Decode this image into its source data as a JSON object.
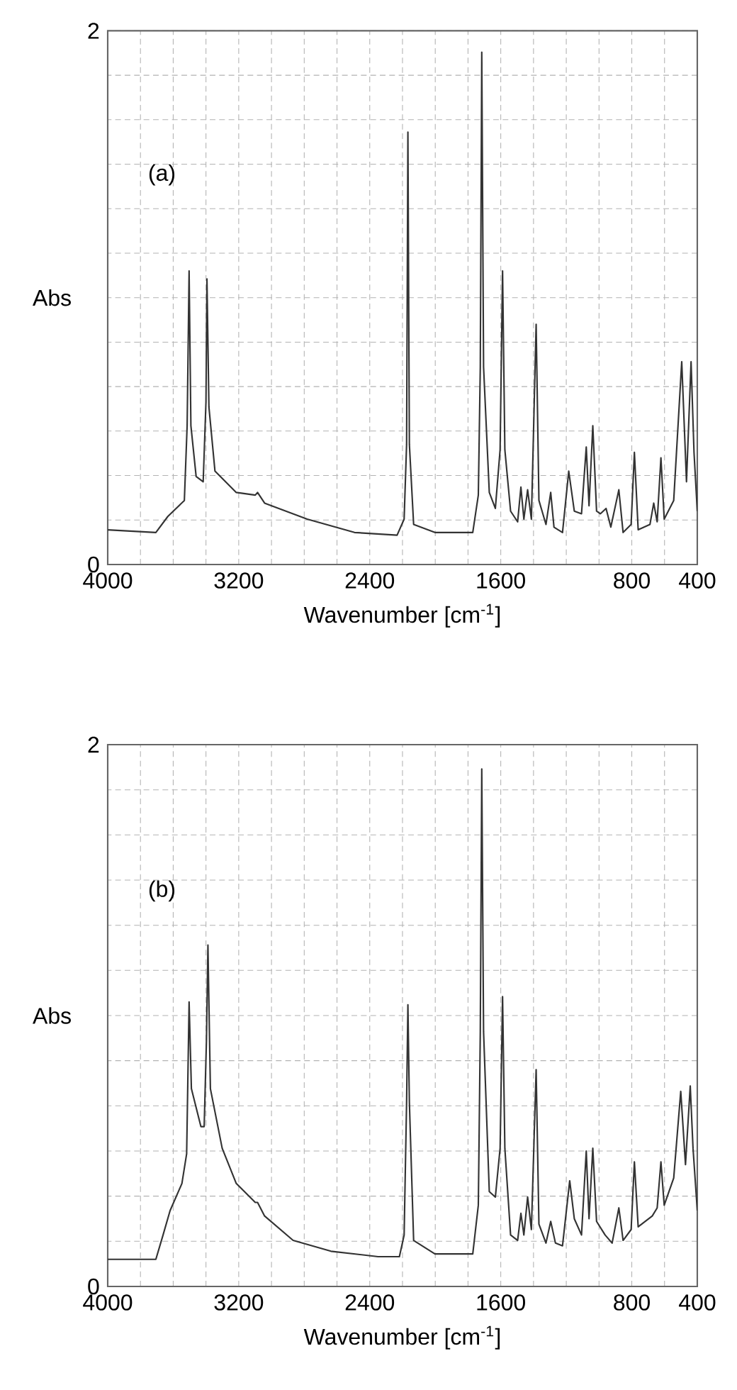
{
  "chart_data": [
    {
      "type": "line",
      "annotations": [
        "(a)"
      ],
      "xlabel": "Wavenumber [cm$^{-1}$]",
      "ylabel": "Abs",
      "xlim": [
        4000,
        400
      ],
      "ylim": [
        0,
        2
      ],
      "xticks": [
        4000,
        {
          "value": 3800,
          "label": null
        },
        {
          "value": 3600,
          "label": null
        },
        {
          "value": 3400,
          "label": null
        },
        3200,
        {
          "value": 3000,
          "label": null
        },
        {
          "value": 2800,
          "label": null
        },
        {
          "value": 2600,
          "label": null
        },
        2400,
        {
          "value": 2200,
          "label": null
        },
        {
          "value": 2000,
          "label": null
        },
        {
          "value": 1800,
          "label": null
        },
        1600,
        {
          "value": 1400,
          "label": null
        },
        {
          "value": 1200,
          "label": null
        },
        {
          "value": 1000,
          "label": null
        },
        800,
        {
          "value": 600,
          "label": null
        },
        400
      ],
      "yticks": [
        0,
        {
          "value": 0.1667,
          "label": null
        },
        {
          "value": 0.3333,
          "label": null
        },
        {
          "value": 0.5,
          "label": null
        },
        {
          "value": 0.6667,
          "label": null
        },
        {
          "value": 0.8333,
          "label": null
        },
        {
          "value": 1,
          "label": null
        },
        {
          "value": 1.1667,
          "label": null
        },
        {
          "value": 1.3333,
          "label": null
        },
        {
          "value": 1.5,
          "label": null
        },
        {
          "value": 1.6667,
          "label": null
        },
        {
          "value": 1.8333,
          "label": null
        },
        2
      ],
      "grid": true,
      "series": [
        {
          "color": "#333333",
          "x": [
            4000,
            3706,
            3633,
            3532,
            3515,
            3503,
            3492,
            3460,
            3417,
            3400,
            3394,
            3382,
            3345,
            3215,
            3099,
            3085,
            3042,
            2782,
            2493,
            2233,
            2190,
            2175,
            2167,
            2158,
            2132,
            2002,
            1771,
            1737,
            1725,
            1716,
            1705,
            1670,
            1633,
            1604,
            1589,
            1575,
            1540,
            1497,
            1477,
            1459,
            1436,
            1413,
            1384,
            1367,
            1324,
            1295,
            1275,
            1223,
            1185,
            1151,
            1107,
            1078,
            1061,
            1038,
            1015,
            992,
            957,
            928,
            879,
            853,
            804,
            784,
            761,
            689,
            666,
            645,
            622,
            602,
            544,
            495,
            466,
            438,
            420,
            400
          ],
          "values": [
            0.13,
            0.12,
            0.18,
            0.24,
            0.52,
            1.1,
            0.52,
            0.33,
            0.31,
            0.61,
            1.07,
            0.59,
            0.35,
            0.27,
            0.26,
            0.27,
            0.23,
            0.17,
            0.12,
            0.11,
            0.17,
            0.45,
            1.62,
            0.45,
            0.15,
            0.12,
            0.12,
            0.26,
            0.74,
            1.92,
            0.74,
            0.27,
            0.21,
            0.43,
            1.1,
            0.43,
            0.2,
            0.16,
            0.29,
            0.17,
            0.28,
            0.17,
            0.9,
            0.24,
            0.15,
            0.27,
            0.14,
            0.12,
            0.35,
            0.2,
            0.19,
            0.44,
            0.22,
            0.52,
            0.2,
            0.19,
            0.21,
            0.14,
            0.28,
            0.12,
            0.15,
            0.42,
            0.13,
            0.15,
            0.23,
            0.16,
            0.4,
            0.17,
            0.24,
            0.76,
            0.31,
            0.76,
            0.42,
            0.2
          ]
        }
      ]
    },
    {
      "type": "line",
      "annotations": [
        "(b)"
      ],
      "xlabel": "Wavenumber [cm$^{-1}$]",
      "ylabel": "Abs",
      "xlim": [
        4000,
        400
      ],
      "ylim": [
        0,
        2
      ],
      "xticks": [
        4000,
        {
          "value": 3800,
          "label": null
        },
        {
          "value": 3600,
          "label": null
        },
        {
          "value": 3400,
          "label": null
        },
        3200,
        {
          "value": 3000,
          "label": null
        },
        {
          "value": 2800,
          "label": null
        },
        {
          "value": 2600,
          "label": null
        },
        2400,
        {
          "value": 2200,
          "label": null
        },
        {
          "value": 2000,
          "label": null
        },
        {
          "value": 1800,
          "label": null
        },
        1600,
        {
          "value": 1400,
          "label": null
        },
        {
          "value": 1200,
          "label": null
        },
        {
          "value": 1000,
          "label": null
        },
        800,
        {
          "value": 600,
          "label": null
        },
        400
      ],
      "yticks": [
        0,
        {
          "value": 0.1667,
          "label": null
        },
        {
          "value": 0.3333,
          "label": null
        },
        {
          "value": 0.5,
          "label": null
        },
        {
          "value": 0.6667,
          "label": null
        },
        {
          "value": 0.8333,
          "label": null
        },
        {
          "value": 1,
          "label": null
        },
        {
          "value": 1.1667,
          "label": null
        },
        {
          "value": 1.3333,
          "label": null
        },
        {
          "value": 1.5,
          "label": null
        },
        {
          "value": 1.6667,
          "label": null
        },
        {
          "value": 1.8333,
          "label": null
        },
        2
      ],
      "grid": true,
      "series": [
        {
          "color": "#333333",
          "x": [
            4000,
            3706,
            3662,
            3619,
            3547,
            3518,
            3503,
            3489,
            3431,
            3411,
            3397,
            3388,
            3373,
            3301,
            3215,
            3099,
            3085,
            3042,
            2868,
            2637,
            2349,
            2219,
            2190,
            2175,
            2167,
            2158,
            2132,
            2002,
            1771,
            1737,
            1725,
            1716,
            1705,
            1670,
            1633,
            1604,
            1589,
            1575,
            1540,
            1497,
            1477,
            1459,
            1436,
            1413,
            1384,
            1367,
            1324,
            1295,
            1266,
            1223,
            1179,
            1151,
            1107,
            1078,
            1061,
            1038,
            1015,
            963,
            920,
            879,
            853,
            804,
            784,
            761,
            675,
            645,
            622,
            602,
            544,
            501,
            472,
            443,
            426,
            400
          ],
          "values": [
            0.1,
            0.1,
            0.19,
            0.28,
            0.38,
            0.49,
            1.05,
            0.73,
            0.59,
            0.59,
            0.91,
            1.26,
            0.73,
            0.51,
            0.38,
            0.31,
            0.31,
            0.26,
            0.17,
            0.13,
            0.11,
            0.11,
            0.19,
            0.68,
            1.04,
            0.68,
            0.17,
            0.12,
            0.12,
            0.3,
            0.94,
            1.91,
            0.94,
            0.35,
            0.33,
            0.51,
            1.07,
            0.51,
            0.19,
            0.17,
            0.27,
            0.19,
            0.33,
            0.21,
            0.8,
            0.23,
            0.16,
            0.24,
            0.16,
            0.15,
            0.39,
            0.25,
            0.19,
            0.5,
            0.25,
            0.51,
            0.24,
            0.19,
            0.16,
            0.29,
            0.17,
            0.21,
            0.46,
            0.22,
            0.26,
            0.29,
            0.46,
            0.3,
            0.4,
            0.72,
            0.45,
            0.74,
            0.51,
            0.28
          ]
        }
      ]
    }
  ]
}
